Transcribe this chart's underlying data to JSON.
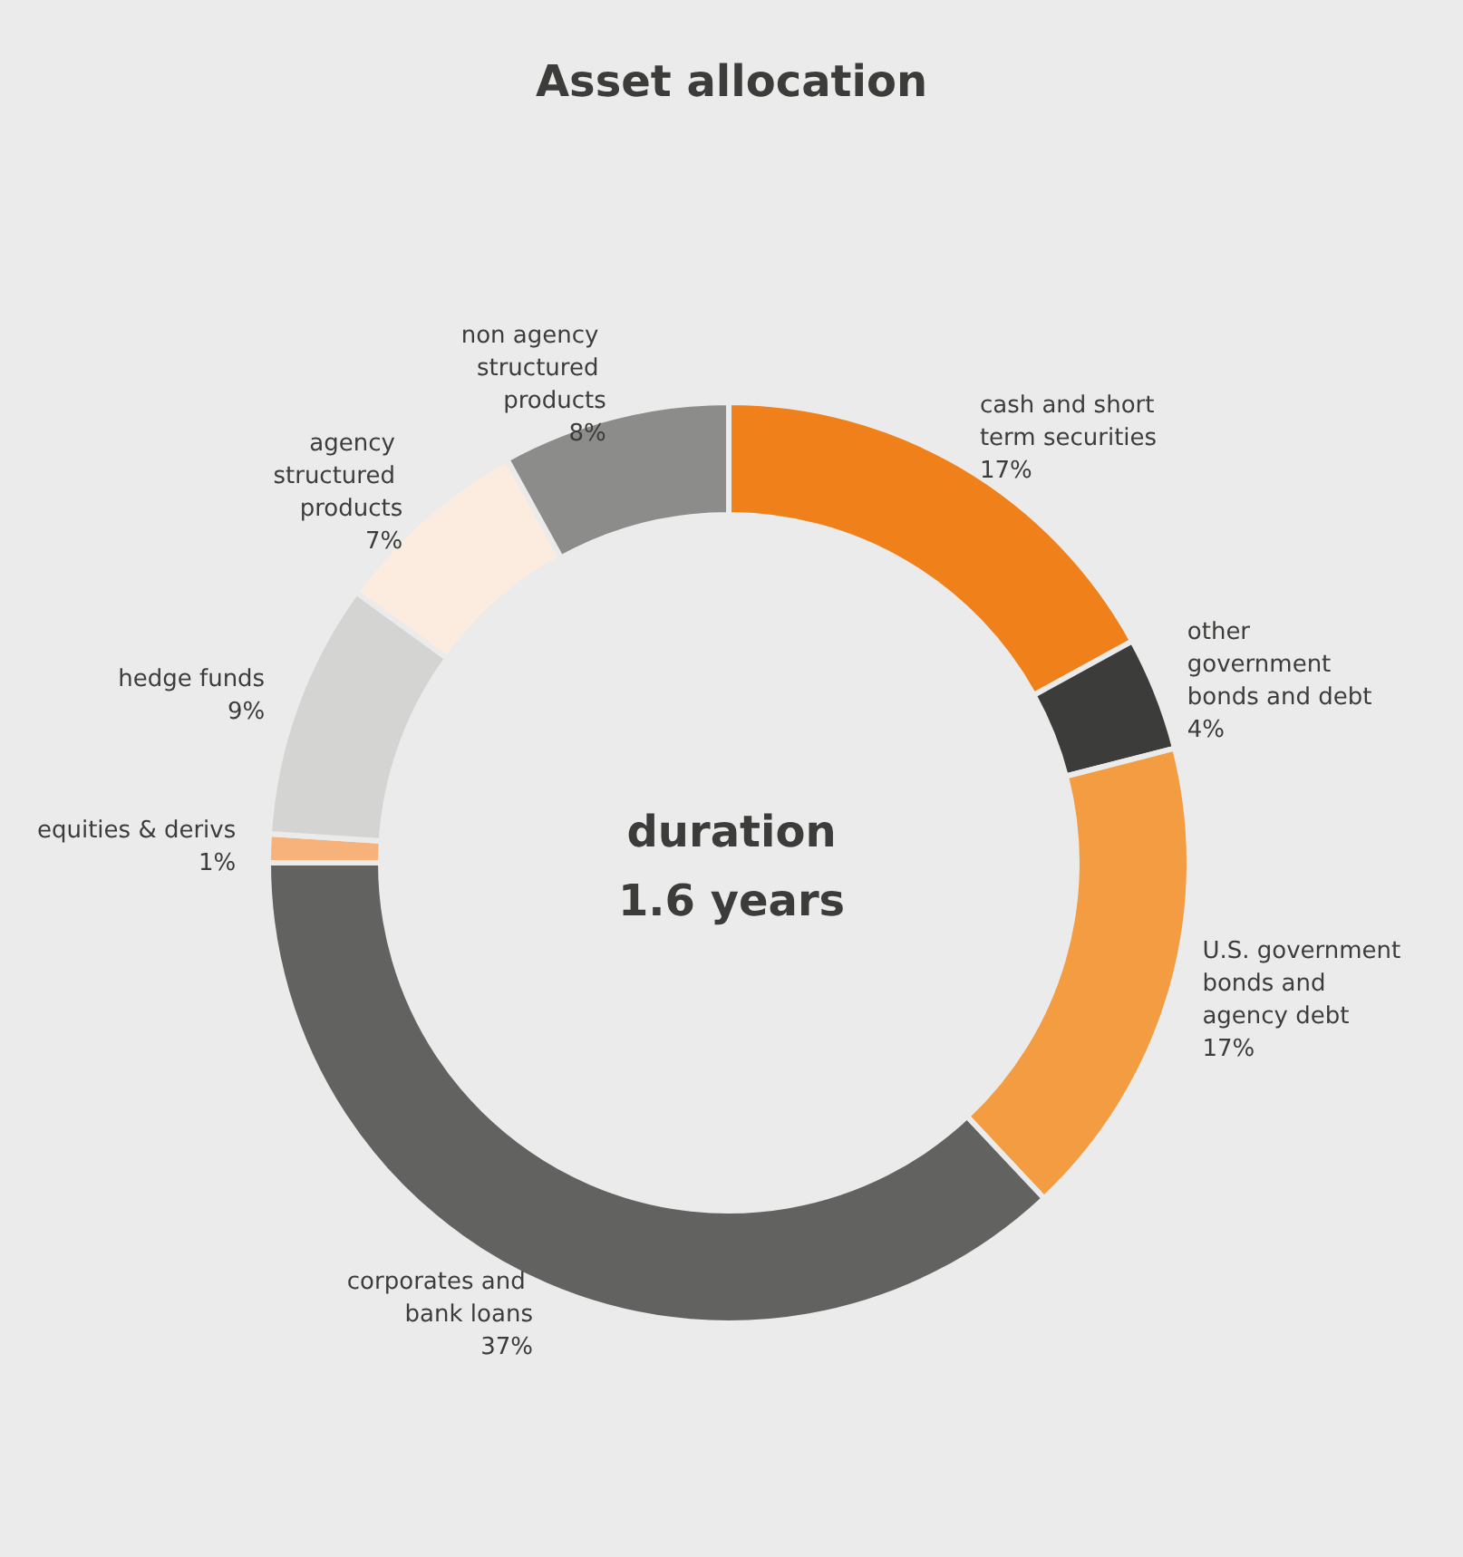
{
  "chart_data": {
    "type": "donut",
    "title": "Asset allocation",
    "categories": [
      "cash and short term securities",
      "other government bonds and debt",
      "U.S. government bonds and agency debt",
      "corporates and bank loans",
      "equities & derivs",
      "hedge funds",
      "agency structured products",
      "non agency structured products"
    ],
    "values": [
      17,
      4,
      17,
      37,
      1,
      9,
      7,
      8
    ],
    "value_labels": [
      "17%",
      "4%",
      "17%",
      "37%",
      "1%",
      "9%",
      "7%",
      "8%"
    ],
    "colors": [
      "#f0801a",
      "#3c3c3a",
      "#f39c42",
      "#626260",
      "#f6b27a",
      "#d4d5d2",
      "#fcece0",
      "#8c8c8b"
    ],
    "annotations": [
      "duration\n1.6 years"
    ],
    "legend": false
  }
}
